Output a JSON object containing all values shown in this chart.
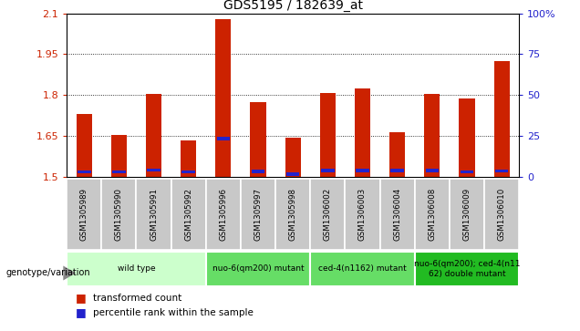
{
  "title": "GDS5195 / 182639_at",
  "samples": [
    "GSM1305989",
    "GSM1305990",
    "GSM1305991",
    "GSM1305992",
    "GSM1305996",
    "GSM1305997",
    "GSM1305998",
    "GSM1306002",
    "GSM1306003",
    "GSM1306004",
    "GSM1306008",
    "GSM1306009",
    "GSM1306010"
  ],
  "red_values": [
    1.73,
    1.655,
    1.805,
    1.635,
    2.08,
    1.775,
    1.643,
    1.807,
    1.823,
    1.665,
    1.805,
    1.787,
    1.925
  ],
  "blue_values": [
    1.513,
    1.513,
    1.52,
    1.513,
    1.635,
    1.515,
    1.505,
    1.518,
    1.518,
    1.518,
    1.518,
    1.513,
    1.517
  ],
  "ymin": 1.5,
  "ymax": 2.1,
  "y_ticks_left": [
    1.5,
    1.65,
    1.8,
    1.95,
    2.1
  ],
  "y_ticks_right": [
    0,
    25,
    50,
    75,
    100
  ],
  "groups": [
    {
      "label": "wild type",
      "start": 0,
      "end": 4,
      "color": "#ccffcc"
    },
    {
      "label": "nuo-6(qm200) mutant",
      "start": 4,
      "end": 7,
      "color": "#66dd66"
    },
    {
      "label": "ced-4(n1162) mutant",
      "start": 7,
      "end": 10,
      "color": "#66dd66"
    },
    {
      "label": "nuo-6(qm200); ced-4(n11\n62) double mutant",
      "start": 10,
      "end": 13,
      "color": "#22bb22"
    }
  ],
  "legend_label_red": "transformed count",
  "legend_label_blue": "percentile rank within the sample",
  "genotype_label": "genotype/variation",
  "bar_width": 0.45,
  "bar_color_red": "#cc2200",
  "bar_color_blue": "#2222cc",
  "font_color_red": "#cc2200",
  "font_color_blue": "#2222cc"
}
